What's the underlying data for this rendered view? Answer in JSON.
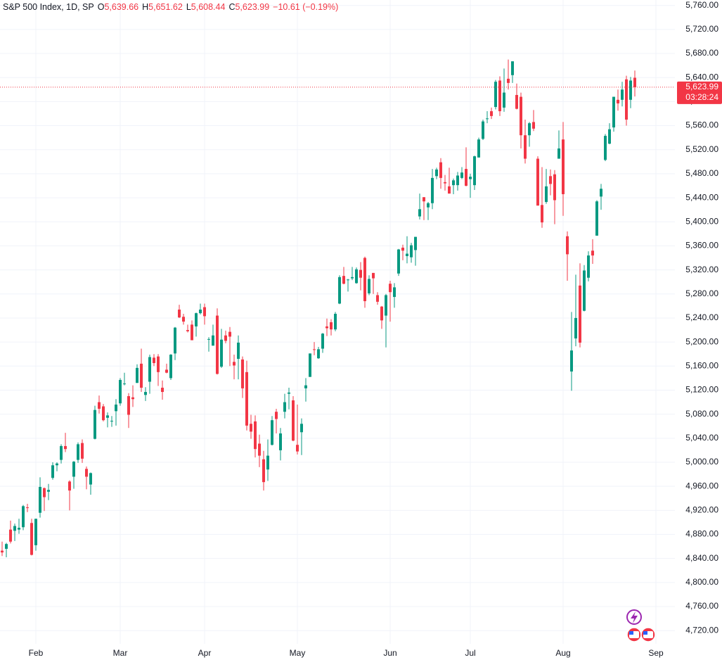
{
  "chart_data": {
    "type": "candlestick",
    "header": {
      "symbol": "S&P 500 Index, 1D, SP",
      "open_label": "O",
      "open": "5,639.66",
      "high_label": "H",
      "high": "5,651.62",
      "low_label": "L",
      "low": "5,608.44",
      "close_label": "C",
      "close": "5,623.99",
      "change": "−10.61 (−0.19%)"
    },
    "last_price": {
      "value": 5623.99,
      "label": "5,623.99"
    },
    "countdown": "03:28:24",
    "up_color": "#089981",
    "down_color": "#f23645",
    "grid": true,
    "xlim": [
      -0.5,
      159.5
    ],
    "xticks": [
      {
        "value": 8,
        "label": "Feb"
      },
      {
        "value": 28,
        "label": "Mar"
      },
      {
        "value": 48,
        "label": "Apr"
      },
      {
        "value": 70,
        "label": "May"
      },
      {
        "value": 92,
        "label": "Jun"
      },
      {
        "value": 111,
        "label": "Jul"
      },
      {
        "value": 133,
        "label": "Aug"
      },
      {
        "value": 155,
        "label": "Sep"
      }
    ],
    "ylim": [
      4698,
      5769
    ],
    "yticks": [
      {
        "value": 4720,
        "label": "4,720.00"
      },
      {
        "value": 4760,
        "label": "4,760.00"
      },
      {
        "value": 4800,
        "label": "4,800.00"
      },
      {
        "value": 4840,
        "label": "4,840.00"
      },
      {
        "value": 4880,
        "label": "4,880.00"
      },
      {
        "value": 4920,
        "label": "4,920.00"
      },
      {
        "value": 4960,
        "label": "4,960.00"
      },
      {
        "value": 5000,
        "label": "5,000.00"
      },
      {
        "value": 5040,
        "label": "5,040.00"
      },
      {
        "value": 5080,
        "label": "5,080.00"
      },
      {
        "value": 5120,
        "label": "5,120.00"
      },
      {
        "value": 5160,
        "label": "5,160.00"
      },
      {
        "value": 5200,
        "label": "5,200.00"
      },
      {
        "value": 5240,
        "label": "5,240.00"
      },
      {
        "value": 5280,
        "label": "5,280.00"
      },
      {
        "value": 5320,
        "label": "5,320.00"
      },
      {
        "value": 5360,
        "label": "5,360.00"
      },
      {
        "value": 5400,
        "label": "5,400.00"
      },
      {
        "value": 5440,
        "label": "5,440.00"
      },
      {
        "value": 5480,
        "label": "5,480.00"
      },
      {
        "value": 5520,
        "label": "5,520.00"
      },
      {
        "value": 5560,
        "label": "5,560.00"
      },
      {
        "value": 5600,
        "label": "5,600.00"
      },
      {
        "value": 5640,
        "label": "5,640.00"
      },
      {
        "value": 5680,
        "label": "5,680.00"
      },
      {
        "value": 5720,
        "label": "5,720.00"
      },
      {
        "value": 5760,
        "label": "5,760.00"
      }
    ],
    "open": [
      4853,
      4856,
      4888,
      4886,
      4888,
      4892,
      4925,
      4899,
      4862,
      4916,
      4957,
      4951,
      4974,
      4995,
      5004,
      5027,
      4968,
      4976,
      5004,
      5032,
      4989,
      4963,
      5039,
      5100,
      5093,
      5074,
      5068,
      5085,
      5098,
      5131,
      5110,
      5108,
      5132,
      5164,
      5112,
      5134,
      5174,
      5176,
      5124,
      5154,
      5140,
      5181,
      5254,
      5242,
      5220,
      5229,
      5226,
      5248,
      5258,
      5204,
      5194,
      5244,
      5159,
      5211,
      5217,
      5167,
      5172,
      5171,
      5150,
      5064,
      5068,
      5031,
      5005,
      4988,
      5029,
      5084,
      5020,
      5084,
      5114,
      5103,
      5029,
      5050,
      5123,
      5142,
      5188,
      5173,
      5189,
      5226,
      5233,
      5221,
      5264,
      5310,
      5303,
      5306,
      5298,
      5320,
      5340,
      5281,
      5315,
      5278,
      5259,
      5244,
      5297,
      5275,
      5314,
      5357,
      5343,
      5341,
      5353,
      5409,
      5441,
      5424,
      5431,
      5476,
      5499,
      5466,
      5459,
      5461,
      5461,
      5473,
      5488,
      5471,
      5461,
      5507,
      5538,
      5572,
      5584,
      5591,
      5635,
      5590,
      5638,
      5644,
      5611,
      5608,
      5544,
      5544,
      5566,
      5505,
      5428,
      5433,
      5476,
      5479,
      5505,
      5537,
      5376,
      5151,
      5206,
      5294,
      5252,
      5307,
      5352,
      5377,
      5442,
      5503,
      5530,
      5557,
      5603,
      5603,
      5637,
      5603,
      5639.66
    ],
    "high": [
      4868,
      4866,
      4903,
      4898,
      4906,
      4929,
      4931,
      4906,
      4906,
      4975,
      4958,
      4964,
      5000,
      5000,
      5030,
      5049,
      4970,
      5002,
      5033,
      5038,
      4993,
      4983,
      5094,
      5111,
      5097,
      5083,
      5077,
      5105,
      5140,
      5149,
      5115,
      5128,
      5163,
      5189,
      5125,
      5179,
      5180,
      5180,
      5136,
      5164,
      5180,
      5225,
      5262,
      5247,
      5229,
      5236,
      5249,
      5264,
      5264,
      5208,
      5229,
      5256,
      5222,
      5219,
      5225,
      5179,
      5211,
      5176,
      5169,
      5079,
      5078,
      5046,
      5019,
      5038,
      5077,
      5089,
      5057,
      5114,
      5124,
      5110,
      5096,
      5073,
      5140,
      5181,
      5200,
      5192,
      5215,
      5239,
      5238,
      5250,
      5311,
      5325,
      5305,
      5325,
      5324,
      5333,
      5342,
      5311,
      5315,
      5283,
      5260,
      5280,
      5302,
      5298,
      5355,
      5362,
      5376,
      5365,
      5375,
      5447,
      5441,
      5433,
      5488,
      5490,
      5506,
      5478,
      5490,
      5472,
      5483,
      5491,
      5524,
      5480,
      5510,
      5540,
      5570,
      5584,
      5590,
      5636,
      5642,
      5655,
      5670,
      5667,
      5630,
      5615,
      5570,
      5566,
      5586,
      5509,
      5491,
      5488,
      5487,
      5486,
      5552,
      5566,
      5384,
      5250,
      5312,
      5331,
      5328,
      5351,
      5371,
      5436,
      5463,
      5546,
      5564,
      5608,
      5620,
      5633,
      5643,
      5641,
      5651.62
    ],
    "low": [
      4844,
      4842,
      4865,
      4869,
      4881,
      4887,
      4917,
      4845,
      4853,
      4908,
      4919,
      4937,
      4971,
      4985,
      4998,
      5017,
      4920,
      4956,
      4999,
      4999,
      4955,
      4946,
      5038,
      5081,
      5068,
      5058,
      5059,
      5061,
      5094,
      5128,
      5057,
      5092,
      5132,
      5117,
      5102,
      5114,
      5160,
      5127,
      5104,
      5148,
      5137,
      5170,
      5240,
      5229,
      5216,
      5203,
      5209,
      5246,
      5229,
      5184,
      5194,
      5146,
      5157,
      5198,
      5160,
      5138,
      5138,
      5107,
      5053,
      5039,
      5008,
      4992,
      4953,
      4969,
      5028,
      5048,
      5003,
      5073,
      5088,
      5035,
      5013,
      5012,
      5101,
      5142,
      5178,
      5172,
      5182,
      5210,
      5211,
      5218,
      5263,
      5296,
      5284,
      5303,
      5297,
      5286,
      5257,
      5278,
      5280,
      5262,
      5222,
      5191,
      5234,
      5257,
      5310,
      5336,
      5331,
      5332,
      5327,
      5404,
      5403,
      5403,
      5421,
      5471,
      5455,
      5452,
      5447,
      5446,
      5452,
      5471,
      5459,
      5440,
      5453,
      5507,
      5536,
      5564,
      5571,
      5587,
      5576,
      5583,
      5620,
      5631,
      5587,
      5522,
      5497,
      5525,
      5551,
      5427,
      5390,
      5430,
      5444,
      5396,
      5505,
      5410,
      5302,
      5119,
      5193,
      5191,
      5251,
      5301,
      5330,
      5377,
      5420,
      5501,
      5529,
      5550,
      5585,
      5592,
      5560,
      5589,
      5608.44
    ],
    "close": [
      4850,
      4864,
      4868,
      4894,
      4891,
      4927,
      4924,
      4846,
      4906,
      4959,
      4942,
      4954,
      4995,
      4998,
      5027,
      5022,
      4953,
      5001,
      5030,
      5006,
      4976,
      4982,
      5087,
      5089,
      5070,
      5078,
      5069,
      5096,
      5137,
      5131,
      5079,
      5105,
      5157,
      5124,
      5117,
      5175,
      5165,
      5150,
      5117,
      5149,
      5179,
      5224,
      5241,
      5234,
      5218,
      5203,
      5248,
      5254,
      5243,
      5205,
      5211,
      5147,
      5204,
      5202,
      5209,
      5161,
      5199,
      5123,
      5061,
      5051,
      5022,
      5011,
      4967,
      5011,
      5070,
      5072,
      5048,
      5100,
      5116,
      5036,
      5018,
      5064,
      5128,
      5181,
      5187,
      5188,
      5214,
      5223,
      5221,
      5247,
      5308,
      5297,
      5304,
      5308,
      5321,
      5307,
      5268,
      5305,
      5306,
      5267,
      5236,
      5278,
      5283,
      5291,
      5354,
      5352,
      5347,
      5361,
      5375,
      5421,
      5434,
      5431,
      5473,
      5487,
      5473,
      5464,
      5447,
      5469,
      5477,
      5482,
      5460,
      5475,
      5509,
      5537,
      5567,
      5572,
      5576,
      5633,
      5584,
      5615,
      5631,
      5667,
      5588,
      5544,
      5505,
      5564,
      5555,
      5427,
      5399,
      5459,
      5463,
      5436,
      5522,
      5446,
      5346,
      5186,
      5240,
      5199,
      5319,
      5344,
      5344,
      5434,
      5455,
      5543,
      5554,
      5608,
      5597,
      5620,
      5570,
      5635,
      5623.99
    ]
  }
}
